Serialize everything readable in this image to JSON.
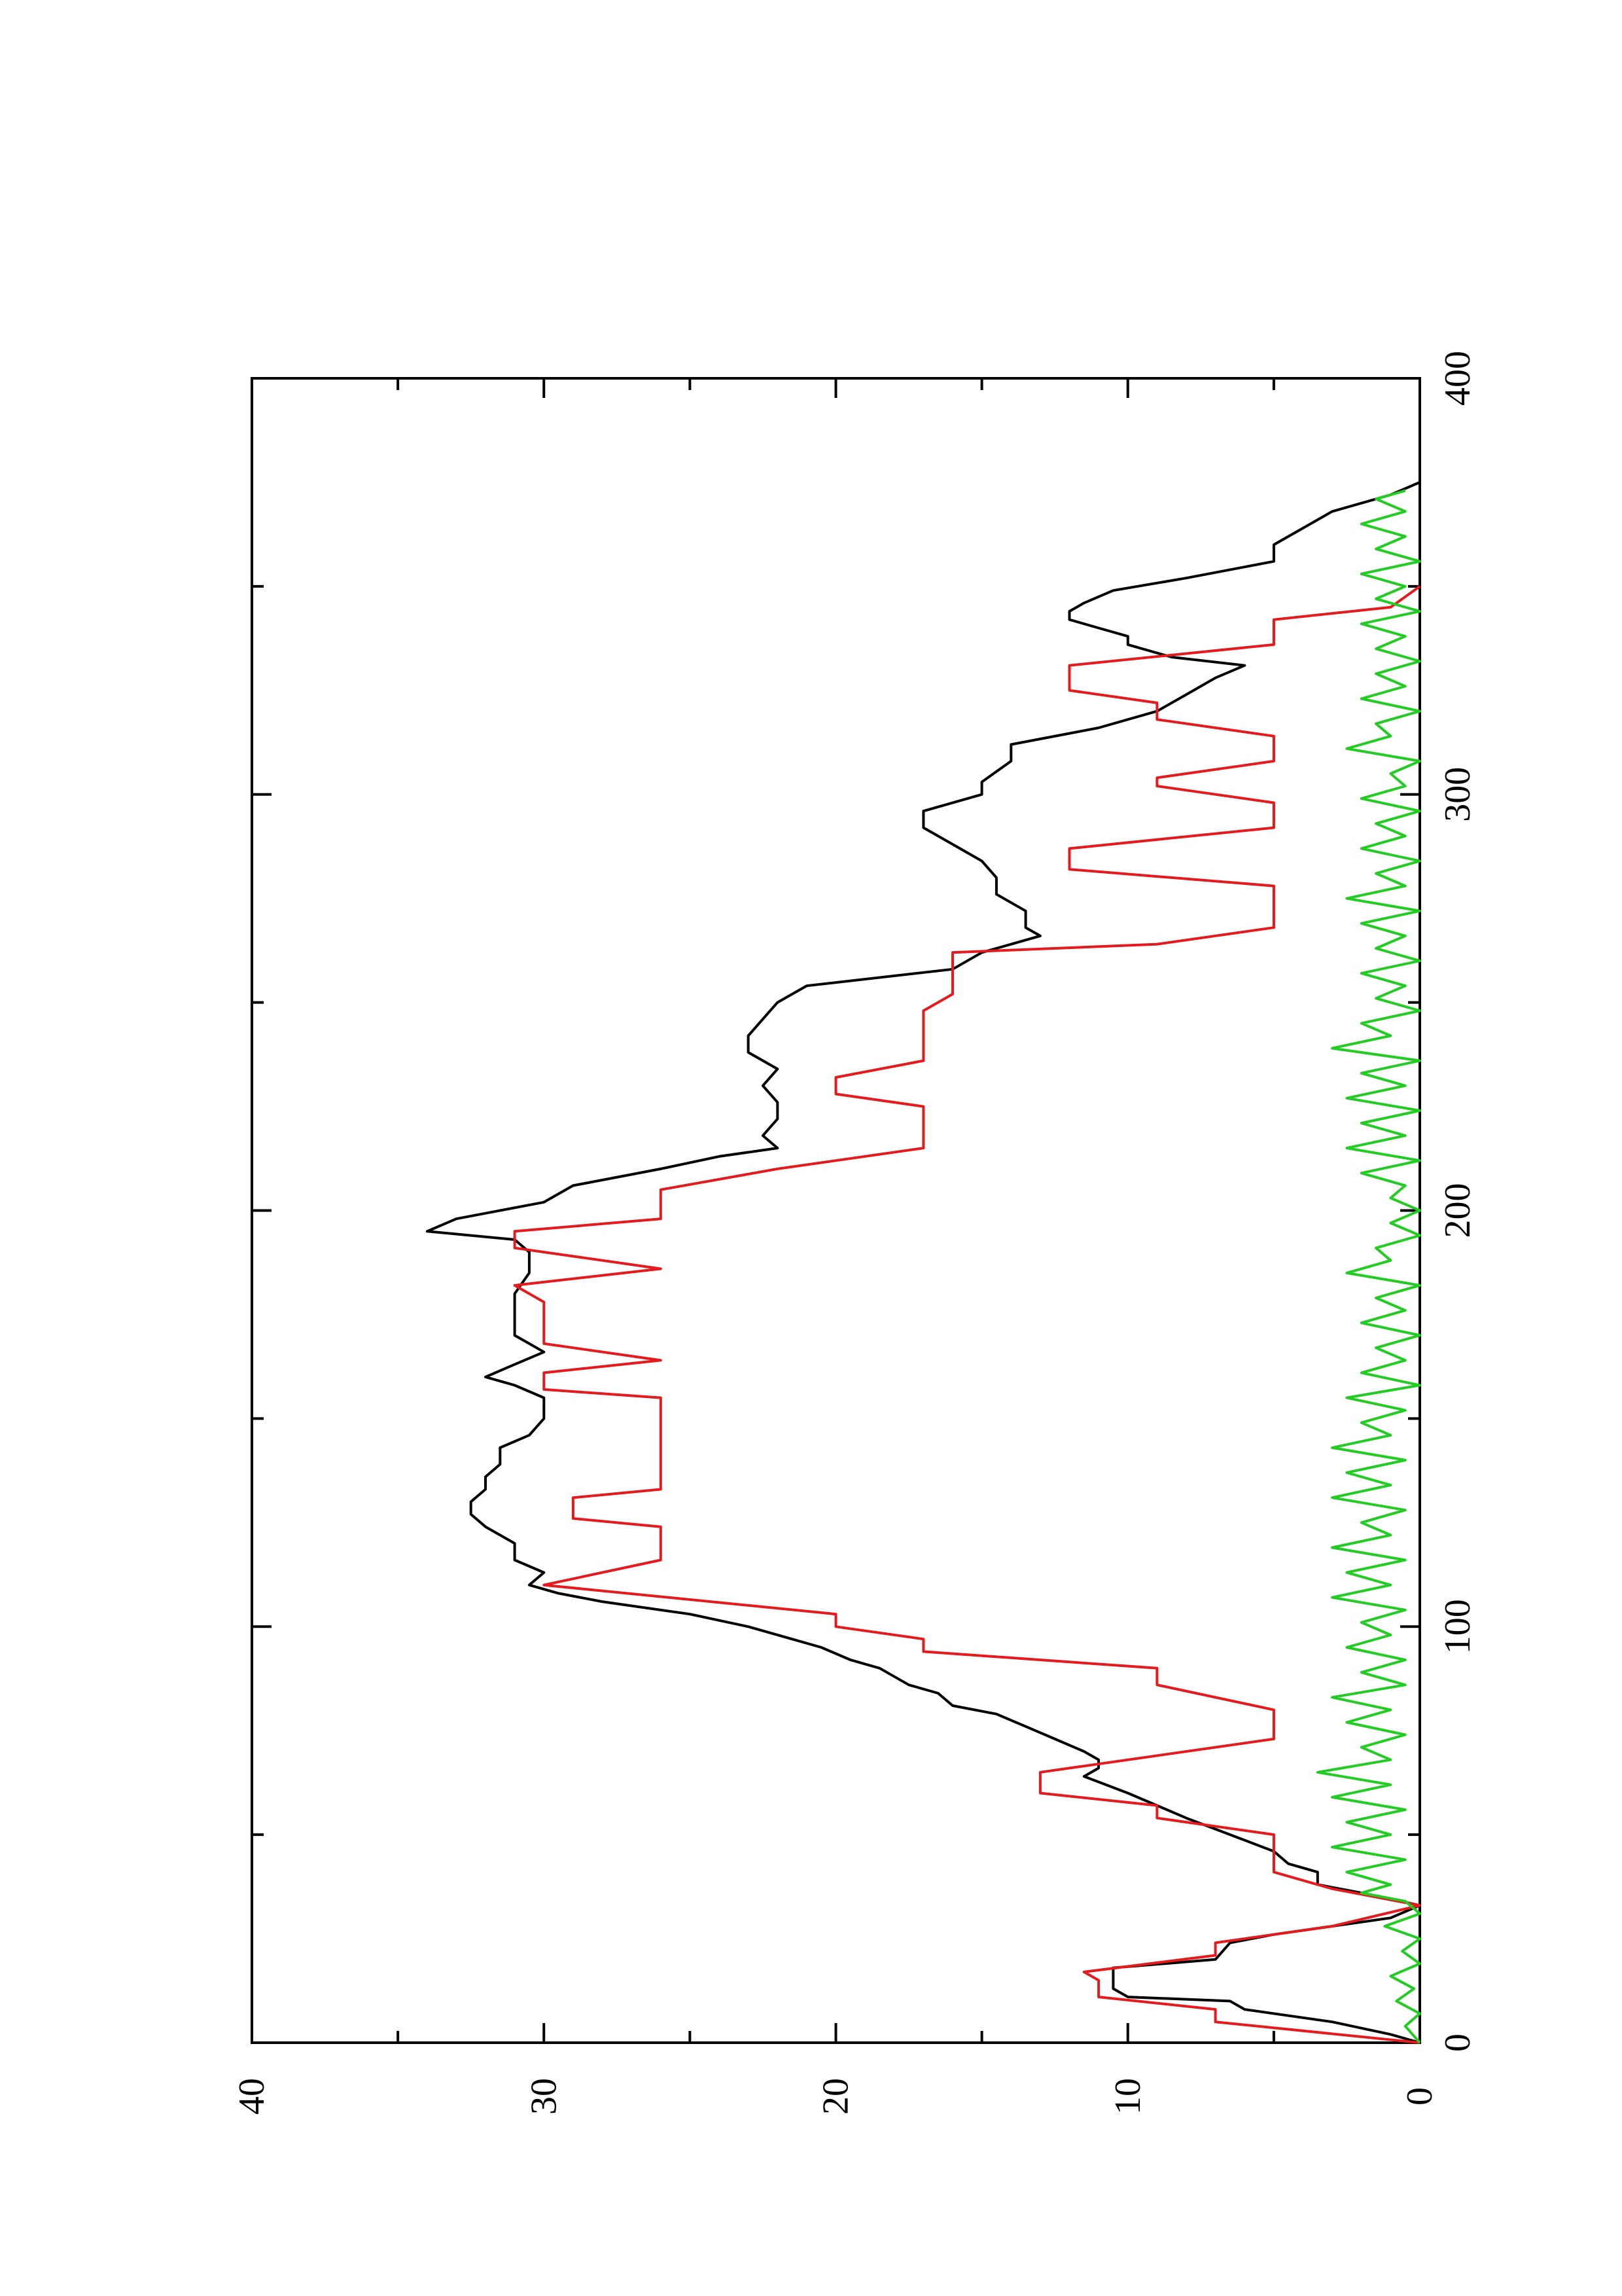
{
  "chart_data": {
    "type": "line",
    "x_axis": {
      "range": [
        0,
        400
      ],
      "major_ticks": [
        0,
        100,
        200,
        300,
        400
      ],
      "minor_ticks": [
        50,
        150,
        250,
        350
      ],
      "tick_labels": [
        "0",
        "100",
        "200",
        "300",
        "400"
      ]
    },
    "y_axis": {
      "range": [
        0,
        40
      ],
      "major_ticks": [
        0,
        10,
        20,
        30,
        40
      ],
      "minor_ticks": [
        5,
        15,
        25,
        35
      ],
      "tick_labels": [
        "0",
        "10",
        "20",
        "30",
        "40"
      ]
    },
    "grid": false,
    "orientation": "rotated 90 degrees counter-clockwise (page landscape)",
    "series": [
      {
        "color": "#000000",
        "style": "line",
        "points": [
          [
            0,
            0
          ],
          [
            2,
            1
          ],
          [
            5,
            3
          ],
          [
            8,
            6
          ],
          [
            10,
            6.5
          ],
          [
            11,
            10
          ],
          [
            13,
            10.5
          ],
          [
            15,
            10.5
          ],
          [
            18,
            10.5
          ],
          [
            20,
            7
          ],
          [
            24,
            6.5
          ],
          [
            26,
            5
          ],
          [
            30,
            1
          ],
          [
            33,
            0
          ],
          [
            36,
            2
          ],
          [
            38,
            3.5
          ],
          [
            41,
            3.5
          ],
          [
            43,
            4.5
          ],
          [
            46,
            5
          ],
          [
            50,
            6.5
          ],
          [
            54,
            8
          ],
          [
            57,
            9
          ],
          [
            60,
            10
          ],
          [
            64,
            11.5
          ],
          [
            66,
            11
          ],
          [
            68,
            11
          ],
          [
            70,
            11.5
          ],
          [
            73,
            12.5
          ],
          [
            76,
            13.5
          ],
          [
            79,
            14.5
          ],
          [
            81,
            16
          ],
          [
            84,
            16.5
          ],
          [
            86,
            17.5
          ],
          [
            90,
            18.5
          ],
          [
            92,
            19.5
          ],
          [
            95,
            20.5
          ],
          [
            97,
            21.5
          ],
          [
            100,
            23
          ],
          [
            103,
            25
          ],
          [
            106,
            28
          ],
          [
            108,
            29.5
          ],
          [
            110,
            30.5
          ],
          [
            113,
            30
          ],
          [
            116,
            31
          ],
          [
            120,
            31
          ],
          [
            124,
            32
          ],
          [
            127,
            32.5
          ],
          [
            130,
            32.5
          ],
          [
            133,
            32
          ],
          [
            136,
            32
          ],
          [
            139,
            31.5
          ],
          [
            143,
            31.5
          ],
          [
            146,
            30.5
          ],
          [
            150,
            30
          ],
          [
            155,
            30
          ],
          [
            158,
            31
          ],
          [
            160,
            32
          ],
          [
            163,
            31
          ],
          [
            166,
            30
          ],
          [
            168,
            30.5
          ],
          [
            170,
            31
          ],
          [
            175,
            31
          ],
          [
            180,
            31
          ],
          [
            185,
            30.5
          ],
          [
            190,
            30.5
          ],
          [
            193,
            31
          ],
          [
            195,
            34
          ],
          [
            198,
            33
          ],
          [
            202,
            30
          ],
          [
            206,
            29
          ],
          [
            210,
            26
          ],
          [
            213,
            24
          ],
          [
            215,
            22
          ],
          [
            218,
            22.5
          ],
          [
            222,
            22
          ],
          [
            226,
            22
          ],
          [
            230,
            22.5
          ],
          [
            234,
            22
          ],
          [
            238,
            23
          ],
          [
            242,
            23
          ],
          [
            246,
            22.5
          ],
          [
            250,
            22
          ],
          [
            254,
            21
          ],
          [
            258,
            16
          ],
          [
            262,
            15
          ],
          [
            266,
            13
          ],
          [
            268,
            13.5
          ],
          [
            272,
            13.5
          ],
          [
            276,
            14.5
          ],
          [
            280,
            14.5
          ],
          [
            284,
            15
          ],
          [
            288,
            16
          ],
          [
            292,
            17
          ],
          [
            296,
            17
          ],
          [
            300,
            15
          ],
          [
            303,
            15
          ],
          [
            308,
            14
          ],
          [
            312,
            14
          ],
          [
            316,
            11
          ],
          [
            320,
            9
          ],
          [
            324,
            8
          ],
          [
            328,
            7
          ],
          [
            331,
            6
          ],
          [
            333,
            8.5
          ],
          [
            336,
            10
          ],
          [
            338,
            10
          ],
          [
            340,
            11
          ],
          [
            342,
            12
          ],
          [
            344,
            12
          ],
          [
            346,
            11.5
          ],
          [
            349,
            10.5
          ],
          [
            352,
            8
          ],
          [
            356,
            5
          ],
          [
            360,
            5
          ],
          [
            364,
            4
          ],
          [
            368,
            3
          ],
          [
            372,
            1
          ],
          [
            375,
            0
          ]
        ]
      },
      {
        "color": "#e41a1c",
        "style": "step",
        "points": [
          [
            0,
            0
          ],
          [
            5,
            7
          ],
          [
            8,
            7
          ],
          [
            11,
            11
          ],
          [
            15,
            11
          ],
          [
            17,
            11.5
          ],
          [
            21,
            7
          ],
          [
            24,
            7
          ],
          [
            28,
            3
          ],
          [
            33,
            0
          ],
          [
            37,
            3
          ],
          [
            41,
            5
          ],
          [
            50,
            5
          ],
          [
            54,
            9
          ],
          [
            57,
            9
          ],
          [
            60,
            13
          ],
          [
            65,
            13
          ],
          [
            73,
            5
          ],
          [
            80,
            5
          ],
          [
            86,
            9
          ],
          [
            90,
            9
          ],
          [
            94,
            17
          ],
          [
            97,
            17
          ],
          [
            100,
            20
          ],
          [
            103,
            20
          ],
          [
            110,
            30
          ],
          [
            116,
            26
          ],
          [
            124,
            26
          ],
          [
            126,
            29
          ],
          [
            131,
            29
          ],
          [
            133,
            26
          ],
          [
            145,
            26
          ],
          [
            155,
            26
          ],
          [
            157,
            30
          ],
          [
            161,
            30
          ],
          [
            164,
            26
          ],
          [
            168,
            30
          ],
          [
            178,
            30
          ],
          [
            182,
            31
          ],
          [
            186,
            26
          ],
          [
            191,
            31
          ],
          [
            195,
            31
          ],
          [
            198,
            26
          ],
          [
            205,
            26
          ],
          [
            210,
            22
          ],
          [
            215,
            17
          ],
          [
            225,
            17
          ],
          [
            228,
            20
          ],
          [
            232,
            20
          ],
          [
            236,
            17
          ],
          [
            244,
            17
          ],
          [
            248,
            17
          ],
          [
            252,
            16
          ],
          [
            262,
            16
          ],
          [
            264,
            9
          ],
          [
            268,
            5
          ],
          [
            278,
            5
          ],
          [
            282,
            12
          ],
          [
            287,
            12
          ],
          [
            292,
            5
          ],
          [
            298,
            5
          ],
          [
            302,
            9
          ],
          [
            304,
            9
          ],
          [
            308,
            5
          ],
          [
            314,
            5
          ],
          [
            318,
            9
          ],
          [
            322,
            9
          ],
          [
            325,
            12
          ],
          [
            331,
            12
          ],
          [
            336,
            5
          ],
          [
            340,
            5
          ],
          [
            342,
            5
          ],
          [
            345,
            1
          ],
          [
            350,
            0
          ]
        ]
      },
      {
        "color": "#22cc22",
        "style": "line",
        "note": "noisy series near zero",
        "points": [
          [
            0,
            0
          ],
          [
            4,
            0.5
          ],
          [
            7,
            0
          ],
          [
            10,
            0.8
          ],
          [
            13,
            0.2
          ],
          [
            16,
            1
          ],
          [
            19,
            0
          ],
          [
            22,
            0.6
          ],
          [
            25,
            0
          ],
          [
            28,
            1.2
          ],
          [
            31,
            0
          ],
          [
            34,
            0.5
          ],
          [
            36,
            2
          ],
          [
            38,
            1
          ],
          [
            41,
            2.5
          ],
          [
            44,
            0.5
          ],
          [
            47,
            3
          ],
          [
            50,
            1
          ],
          [
            53,
            2.5
          ],
          [
            56,
            0.5
          ],
          [
            59,
            3
          ],
          [
            62,
            1
          ],
          [
            65,
            3.5
          ],
          [
            68,
            1
          ],
          [
            71,
            2
          ],
          [
            74,
            0.5
          ],
          [
            77,
            2.5
          ],
          [
            80,
            1
          ],
          [
            83,
            3
          ],
          [
            86,
            0.5
          ],
          [
            89,
            2
          ],
          [
            92,
            0.5
          ],
          [
            95,
            2.5
          ],
          [
            98,
            1
          ],
          [
            101,
            2
          ],
          [
            104,
            0.5
          ],
          [
            107,
            3
          ],
          [
            110,
            1
          ],
          [
            113,
            2.5
          ],
          [
            116,
            0.5
          ],
          [
            119,
            3
          ],
          [
            122,
            1
          ],
          [
            125,
            2
          ],
          [
            128,
            0.5
          ],
          [
            131,
            3
          ],
          [
            134,
            1
          ],
          [
            137,
            2.5
          ],
          [
            140,
            0.5
          ],
          [
            143,
            3
          ],
          [
            146,
            1
          ],
          [
            149,
            2
          ],
          [
            152,
            0.5
          ],
          [
            155,
            2.5
          ],
          [
            158,
            0
          ],
          [
            161,
            2
          ],
          [
            164,
            0.5
          ],
          [
            167,
            1.5
          ],
          [
            170,
            0
          ],
          [
            173,
            2
          ],
          [
            176,
            0.5
          ],
          [
            179,
            1.5
          ],
          [
            182,
            0
          ],
          [
            185,
            2.5
          ],
          [
            188,
            1
          ],
          [
            191,
            1.5
          ],
          [
            194,
            0
          ],
          [
            197,
            1
          ],
          [
            200,
            0
          ],
          [
            203,
            1
          ],
          [
            206,
            0.5
          ],
          [
            209,
            2
          ],
          [
            212,
            0
          ],
          [
            215,
            2.5
          ],
          [
            218,
            0.5
          ],
          [
            221,
            2
          ],
          [
            224,
            0
          ],
          [
            227,
            2.5
          ],
          [
            230,
            0.5
          ],
          [
            233,
            2
          ],
          [
            236,
            0
          ],
          [
            239,
            3
          ],
          [
            242,
            1
          ],
          [
            245,
            2
          ],
          [
            248,
            0
          ],
          [
            251,
            1.5
          ],
          [
            254,
            0.5
          ],
          [
            257,
            2
          ],
          [
            260,
            0
          ],
          [
            263,
            1.5
          ],
          [
            266,
            0.5
          ],
          [
            269,
            2
          ],
          [
            272,
            0
          ],
          [
            275,
            2.5
          ],
          [
            278,
            0.5
          ],
          [
            281,
            1.5
          ],
          [
            284,
            0
          ],
          [
            287,
            2
          ],
          [
            290,
            0.5
          ],
          [
            293,
            1.5
          ],
          [
            296,
            0
          ],
          [
            299,
            2
          ],
          [
            302,
            0.5
          ],
          [
            305,
            1
          ],
          [
            308,
            0
          ],
          [
            311,
            2.5
          ],
          [
            314,
            1
          ],
          [
            317,
            1.5
          ],
          [
            320,
            0
          ],
          [
            323,
            2
          ],
          [
            326,
            0.5
          ],
          [
            329,
            1.5
          ],
          [
            332,
            0
          ],
          [
            335,
            1.5
          ],
          [
            338,
            0.5
          ],
          [
            341,
            2
          ],
          [
            344,
            0
          ],
          [
            347,
            1.5
          ],
          [
            350,
            0.5
          ],
          [
            353,
            2
          ],
          [
            356,
            0
          ],
          [
            359,
            1.5
          ],
          [
            362,
            0.5
          ],
          [
            365,
            2
          ],
          [
            368,
            0.5
          ],
          [
            371,
            1.5
          ],
          [
            373,
            0.5
          ]
        ]
      }
    ]
  }
}
